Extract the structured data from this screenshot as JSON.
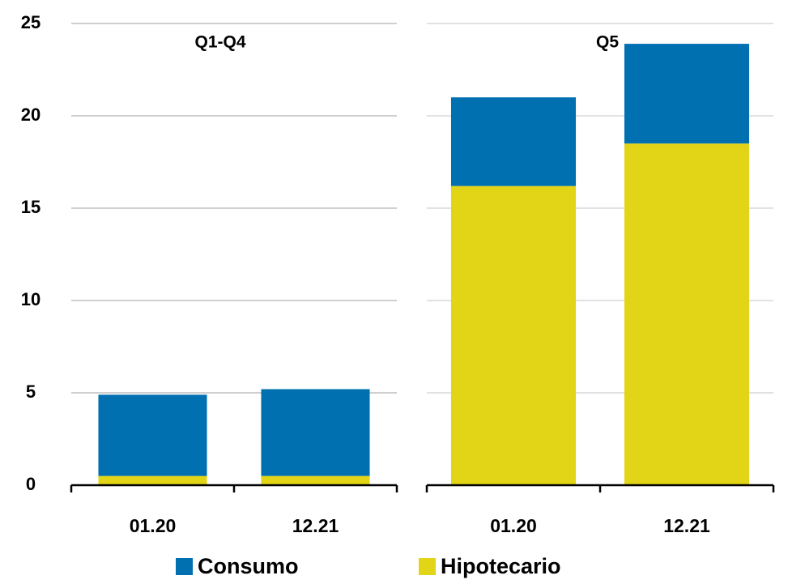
{
  "chart_data": [
    {
      "type": "bar",
      "stacked": true,
      "title": "Q1-Q4",
      "categories": [
        "01.20",
        "12.21"
      ],
      "series": [
        {
          "name": "Hipotecario",
          "color": "#e2d416",
          "values": [
            0.5,
            0.5
          ]
        },
        {
          "name": "Consumo",
          "color": "#0070b0",
          "values": [
            4.4,
            4.7
          ]
        }
      ],
      "ylim": [
        0,
        25
      ],
      "yticks": [
        0,
        5,
        10,
        15,
        20,
        25
      ],
      "grid": true
    },
    {
      "type": "bar",
      "stacked": true,
      "title": "Q5",
      "categories": [
        "01.20",
        "12.21"
      ],
      "series": [
        {
          "color": "#e2d416",
          "values": [
            16.2,
            18.5
          ]
        },
        {
          "color": "#0070b0",
          "values": [
            4.8,
            5.4
          ]
        }
      ],
      "ylim": [
        0,
        25
      ],
      "yticks": [
        0,
        5,
        10,
        15,
        20,
        25
      ],
      "grid": true
    }
  ]
}
